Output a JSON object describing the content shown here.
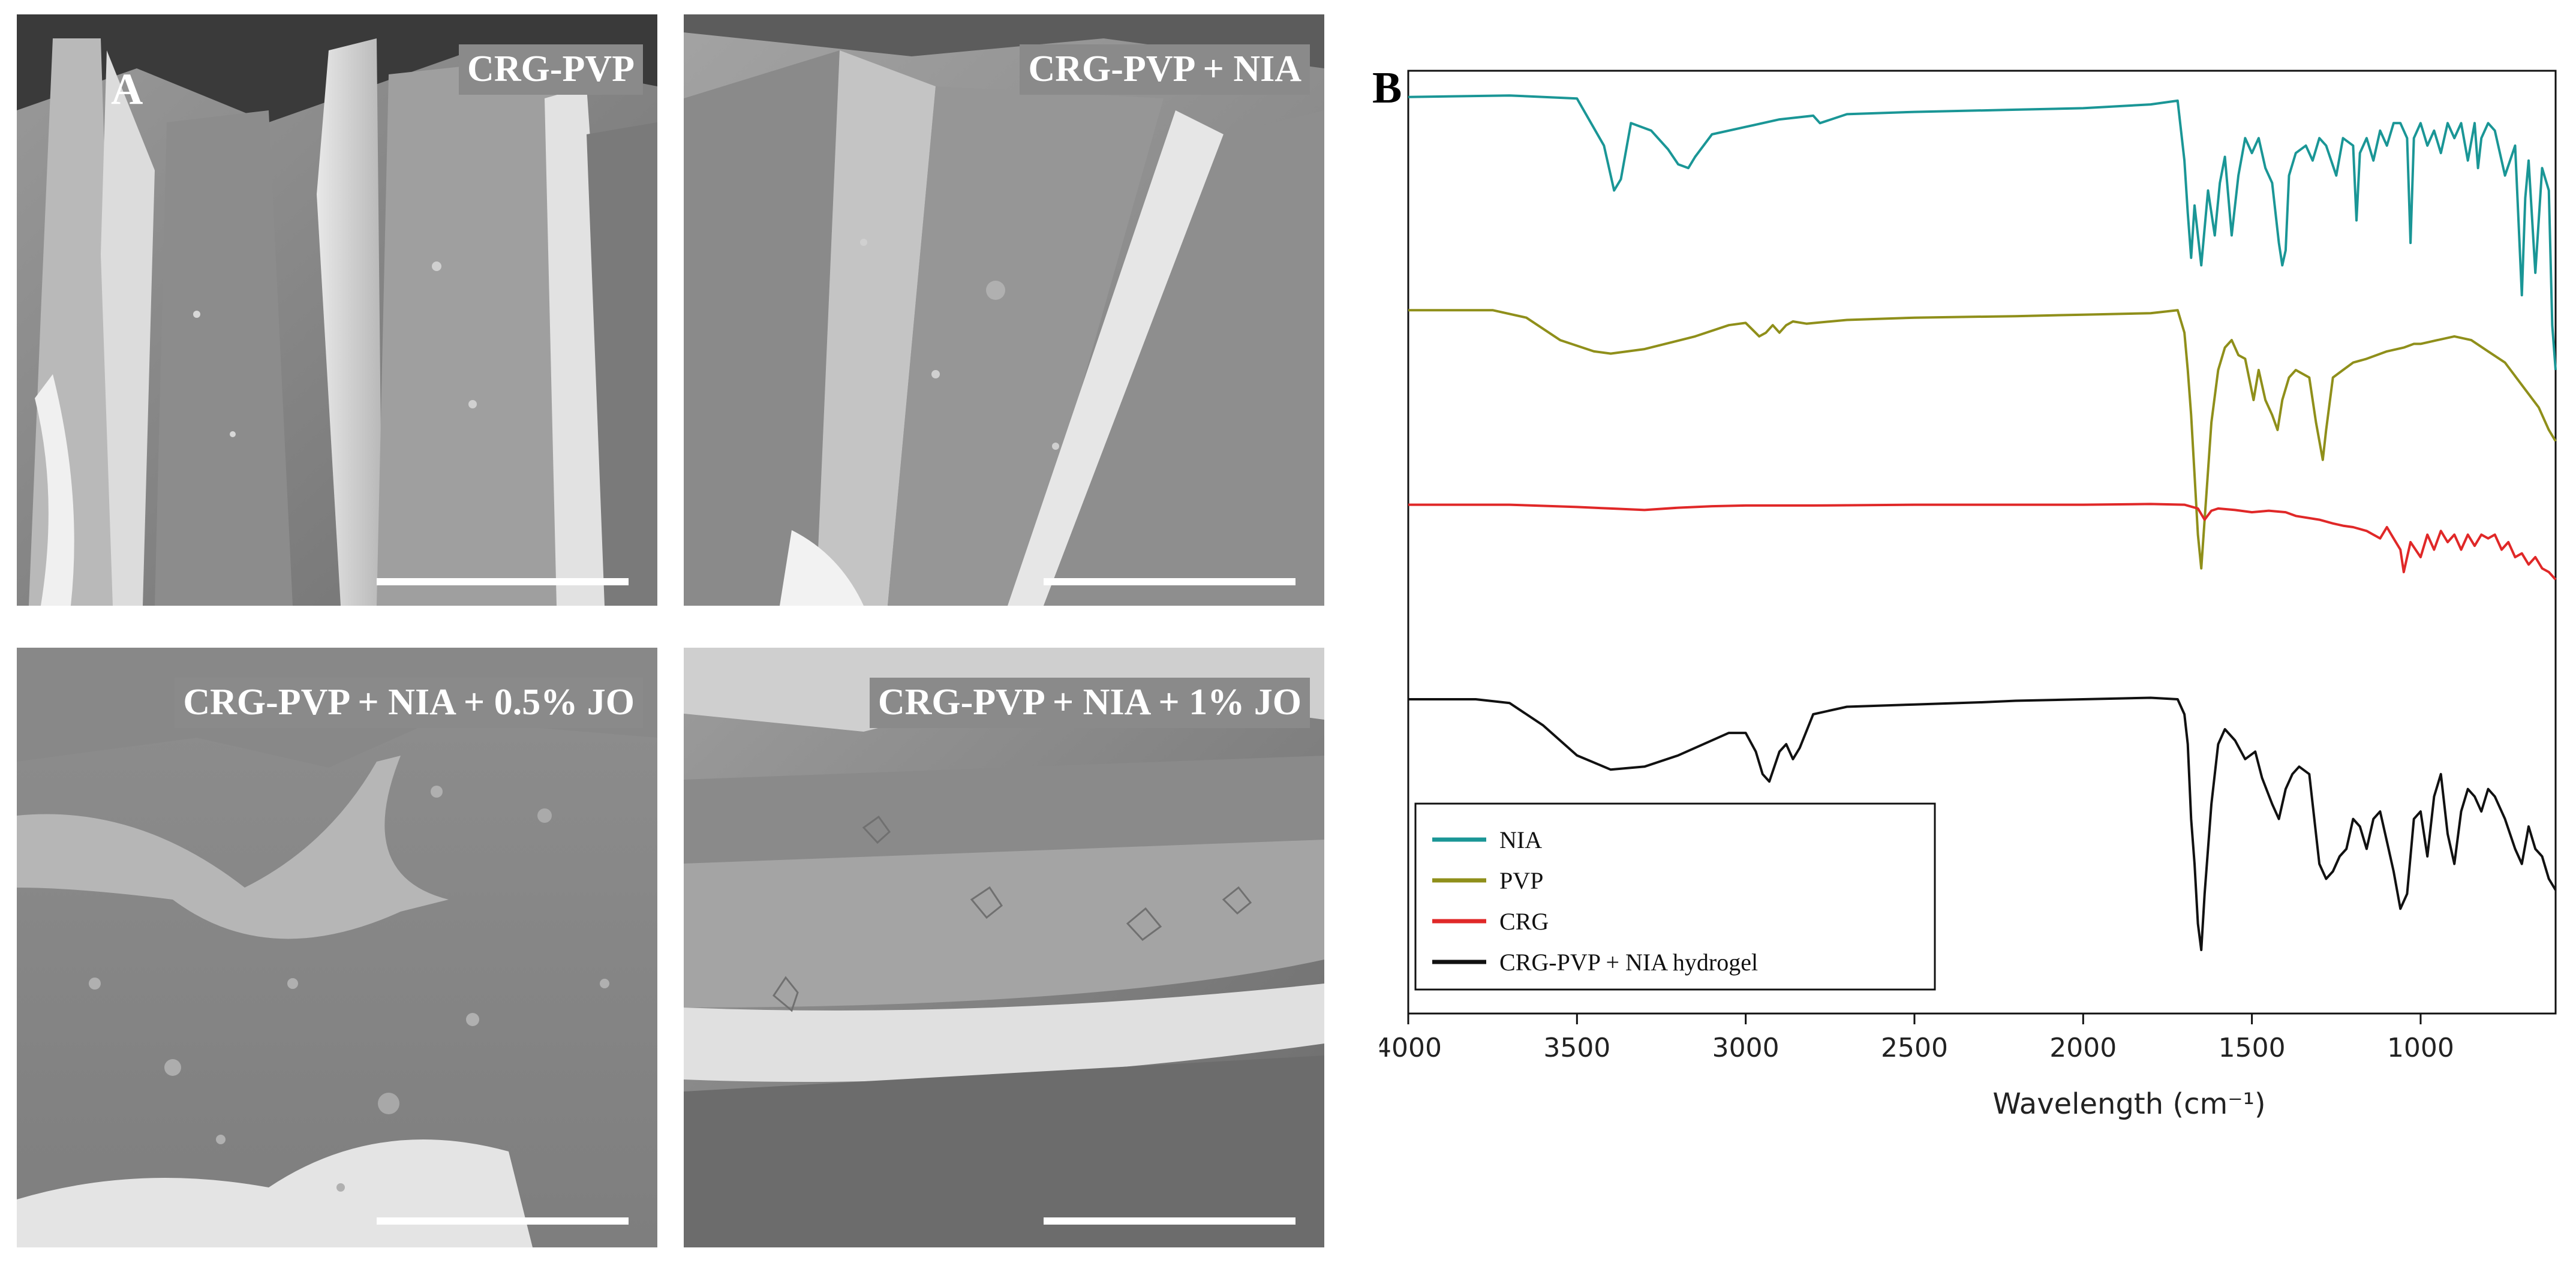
{
  "panel_a": {
    "letter": "A",
    "images": [
      {
        "label": "CRG-PVP"
      },
      {
        "label": "CRG-PVP + NIA"
      },
      {
        "label": "CRG-PVP + NIA + 0.5% JO"
      },
      {
        "label": "CRG-PVP + NIA + 1% JO"
      }
    ]
  },
  "panel_b": {
    "letter": "B"
  },
  "chart_data": {
    "type": "line",
    "title": "",
    "xlabel": "Wavelength (cm⁻¹)",
    "ylabel": "",
    "xlim": [
      4000,
      600
    ],
    "x_reversed": true,
    "x_ticks": [
      4000,
      3500,
      3000,
      2500,
      2000,
      1500,
      1000
    ],
    "y_offset_stacked": true,
    "grid": false,
    "legend_position": "bottom-left",
    "series": [
      {
        "name": "NIA",
        "color": "#1a9696",
        "x": [
          4000,
          3700,
          3500,
          3420,
          3390,
          3370,
          3340,
          3280,
          3230,
          3200,
          3170,
          3150,
          3100,
          3000,
          2900,
          2800,
          2780,
          2700,
          2500,
          2200,
          2000,
          1800,
          1720,
          1700,
          1690,
          1680,
          1670,
          1650,
          1630,
          1610,
          1595,
          1580,
          1560,
          1540,
          1520,
          1500,
          1480,
          1460,
          1440,
          1420,
          1410,
          1400,
          1390,
          1370,
          1340,
          1320,
          1300,
          1280,
          1250,
          1230,
          1200,
          1190,
          1180,
          1160,
          1140,
          1120,
          1100,
          1080,
          1060,
          1040,
          1030,
          1020,
          1000,
          980,
          960,
          940,
          920,
          900,
          880,
          860,
          840,
          830,
          820,
          800,
          780,
          750,
          720,
          700,
          690,
          680,
          660,
          640,
          620,
          610,
          600
        ],
        "values": [
          98.5,
          98.7,
          98.3,
          92.0,
          86.0,
          87.5,
          95.0,
          94.0,
          91.5,
          89.5,
          89.0,
          90.5,
          93.5,
          94.5,
          95.5,
          96.0,
          95.0,
          96.2,
          96.5,
          96.8,
          97.0,
          97.5,
          98.0,
          90.0,
          83.0,
          77.0,
          84.0,
          76.0,
          86.0,
          80.0,
          87.0,
          90.5,
          80.0,
          88.0,
          93.0,
          91.0,
          93.0,
          89.0,
          87.0,
          79.0,
          76.0,
          78.0,
          88.0,
          91.0,
          92.0,
          90.0,
          93.0,
          92.0,
          88.0,
          93.0,
          92.0,
          82.0,
          91.0,
          93.0,
          90.0,
          94.0,
          92.0,
          95.0,
          95.0,
          93.0,
          79.0,
          93.0,
          95.0,
          92.0,
          94.0,
          91.0,
          95.0,
          93.0,
          95.0,
          90.0,
          95.0,
          89.0,
          93.0,
          95.0,
          94.0,
          88.0,
          92.0,
          72.0,
          85.0,
          90.0,
          75.0,
          89.0,
          86.0,
          68.0,
          62.0
        ]
      },
      {
        "name": "PVP",
        "color": "#8f8f1a",
        "x": [
          4000,
          3750,
          3650,
          3550,
          3450,
          3400,
          3300,
          3150,
          3050,
          3000,
          2960,
          2940,
          2920,
          2900,
          2880,
          2860,
          2820,
          2700,
          2500,
          2200,
          2000,
          1800,
          1720,
          1700,
          1690,
          1680,
          1670,
          1660,
          1650,
          1640,
          1620,
          1600,
          1580,
          1560,
          1540,
          1520,
          1495,
          1480,
          1460,
          1440,
          1424,
          1410,
          1390,
          1370,
          1330,
          1310,
          1290,
          1280,
          1260,
          1230,
          1200,
          1160,
          1100,
          1050,
          1020,
          1000,
          950,
          900,
          850,
          800,
          750,
          700,
          650,
          620,
          600
        ],
        "values": [
          70.0,
          70.0,
          69.0,
          66.0,
          64.5,
          64.2,
          64.8,
          66.5,
          68.0,
          68.3,
          66.5,
          67.0,
          68.0,
          67.0,
          68.0,
          68.5,
          68.2,
          68.7,
          69.0,
          69.2,
          69.4,
          69.6,
          70.0,
          67.0,
          62.0,
          56.0,
          48.0,
          40.0,
          35.5,
          42.0,
          55.0,
          62.0,
          65.0,
          66.0,
          64.0,
          63.5,
          58.0,
          62.0,
          58.0,
          56.0,
          54.0,
          58.0,
          61.0,
          62.0,
          61.0,
          55.0,
          50.0,
          54.0,
          61.0,
          62.0,
          63.0,
          63.5,
          64.5,
          65.0,
          65.5,
          65.5,
          66.0,
          66.5,
          66.0,
          64.5,
          63.0,
          60.0,
          57.0,
          54.0,
          52.5
        ]
      },
      {
        "name": "CRG",
        "color": "#e02828",
        "x": [
          4000,
          3700,
          3500,
          3400,
          3300,
          3200,
          3100,
          3000,
          2900,
          2800,
          2500,
          2000,
          1800,
          1700,
          1660,
          1640,
          1620,
          1600,
          1550,
          1500,
          1450,
          1400,
          1370,
          1300,
          1260,
          1230,
          1200,
          1160,
          1120,
          1100,
          1080,
          1060,
          1050,
          1040,
          1030,
          1000,
          980,
          960,
          940,
          920,
          900,
          880,
          860,
          840,
          820,
          800,
          780,
          760,
          740,
          720,
          700,
          680,
          660,
          640,
          620,
          600
        ],
        "values": [
          44.0,
          44.0,
          43.7,
          43.5,
          43.3,
          43.6,
          43.8,
          43.9,
          43.9,
          43.9,
          44.0,
          44.0,
          44.1,
          44.0,
          43.5,
          42.0,
          43.2,
          43.5,
          43.3,
          43.0,
          43.2,
          43.0,
          42.5,
          42.0,
          41.5,
          41.2,
          41.0,
          40.5,
          39.5,
          41.0,
          39.5,
          38.0,
          35.0,
          37.0,
          39.0,
          37.0,
          40.0,
          38.0,
          40.5,
          39.0,
          40.0,
          38.0,
          40.0,
          38.5,
          40.0,
          39.5,
          40.0,
          38.0,
          39.0,
          37.0,
          37.5,
          36.0,
          37.0,
          35.5,
          35.0,
          34.0
        ]
      },
      {
        "name": "CRG-PVP + NIA hydrogel",
        "color": "#111111",
        "x": [
          4000,
          3800,
          3700,
          3600,
          3500,
          3400,
          3300,
          3200,
          3100,
          3050,
          3000,
          2970,
          2950,
          2930,
          2900,
          2880,
          2860,
          2840,
          2800,
          2700,
          2500,
          2300,
          2200,
          2000,
          1800,
          1720,
          1700,
          1690,
          1680,
          1670,
          1660,
          1650,
          1640,
          1620,
          1600,
          1580,
          1550,
          1520,
          1490,
          1470,
          1440,
          1420,
          1400,
          1380,
          1360,
          1330,
          1300,
          1280,
          1260,
          1240,
          1220,
          1200,
          1180,
          1160,
          1140,
          1120,
          1100,
          1080,
          1060,
          1040,
          1020,
          1000,
          980,
          960,
          940,
          920,
          900,
          880,
          860,
          840,
          820,
          800,
          780,
          750,
          720,
          700,
          680,
          660,
          640,
          620,
          600
        ],
        "values": [
          18.0,
          18.0,
          17.5,
          14.5,
          10.5,
          8.6,
          9.0,
          10.5,
          12.5,
          13.5,
          13.5,
          11.0,
          8.0,
          7.0,
          11.0,
          12.0,
          10.0,
          11.5,
          16.0,
          17.0,
          17.3,
          17.6,
          17.8,
          18.0,
          18.2,
          18.0,
          16.0,
          12.0,
          2.0,
          -4.0,
          -12.0,
          -15.5,
          -8.0,
          4.0,
          12.0,
          14.0,
          12.5,
          10.0,
          11.0,
          7.5,
          4.0,
          2.0,
          6.0,
          8.0,
          9.0,
          8.0,
          -4.0,
          -6.0,
          -5.0,
          -3.0,
          -2.0,
          2.0,
          1.0,
          -2.0,
          2.0,
          3.0,
          -1.0,
          -5.0,
          -10.0,
          -8.0,
          2.0,
          3.0,
          -3.0,
          5.0,
          8.0,
          0.0,
          -4.0,
          3.0,
          6.0,
          5.0,
          3.0,
          6.0,
          5.0,
          2.0,
          -2.0,
          -4.0,
          1.0,
          -2.0,
          -3.0,
          -6.0,
          -7.5
        ]
      }
    ]
  }
}
